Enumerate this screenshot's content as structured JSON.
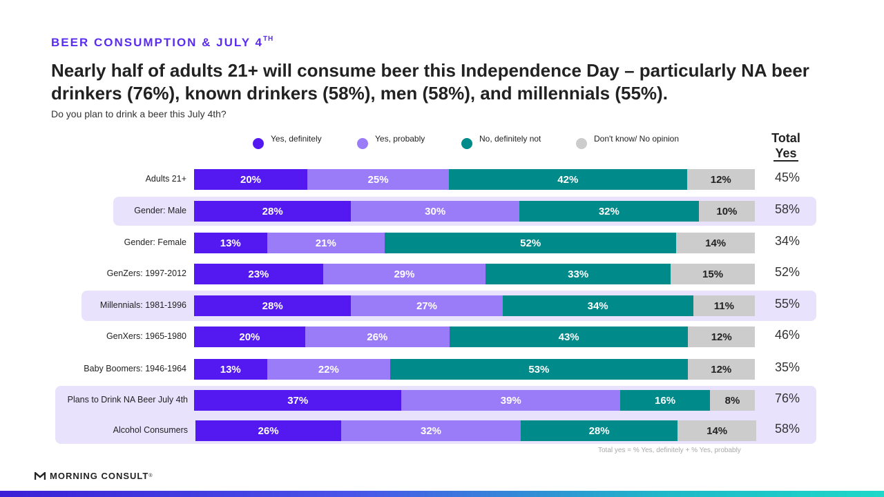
{
  "header": {
    "eyebrow": "BEER CONSUMPTION & JULY 4",
    "eyebrow_sup": "TH",
    "headline": "Nearly half of adults 21+ will consume beer this Independence Day – particularly NA beer drinkers (76%), known drinkers (58%), men (58%), and millennials (55%).",
    "subtitle": "Do you plan to drink a beer this July 4th?"
  },
  "total_header": {
    "line1": "Total",
    "line2": "Yes"
  },
  "footnote": "Total yes = % Yes, definitely + % Yes, probably",
  "logo": {
    "text": "MORNING CONSULT",
    "mark": "®"
  },
  "colors": {
    "yes_definitely": "#5319f0",
    "yes_probably": "#9a7bf8",
    "no_definitely_not": "#008a8a",
    "dont_know": "#cccccc",
    "highlight": "#e8e2fd",
    "eyebrow": "#5a2cf0"
  },
  "chart_data": {
    "type": "bar",
    "orientation": "horizontal",
    "stacked": true,
    "unit": "%",
    "legend_placement": "top",
    "categories": [
      "Adults 21+",
      "Gender: Male",
      "Gender: Female",
      "GenZers: 1997-2012",
      "Millennials: 1981-1996",
      "GenXers: 1965-1980",
      "Baby Boomers: 1946-1964",
      "Plans to Drink NA Beer July 4th",
      "Alcohol Consumers"
    ],
    "series": [
      {
        "name": "Yes, definitely",
        "values": [
          20,
          28,
          13,
          23,
          28,
          20,
          13,
          37,
          26
        ]
      },
      {
        "name": "Yes, probably",
        "values": [
          25,
          30,
          21,
          29,
          27,
          26,
          22,
          39,
          32
        ]
      },
      {
        "name": "No, definitely not",
        "values": [
          42,
          32,
          52,
          33,
          34,
          43,
          53,
          16,
          28
        ]
      },
      {
        "name": "Don't know/ No opinion",
        "values": [
          12,
          10,
          14,
          15,
          11,
          12,
          12,
          8,
          14
        ]
      }
    ],
    "total_yes": [
      45,
      58,
      34,
      52,
      55,
      46,
      35,
      76,
      58
    ],
    "highlighted_rows": [
      1,
      4,
      7,
      8
    ]
  }
}
